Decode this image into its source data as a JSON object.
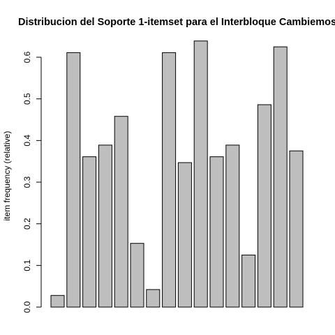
{
  "chart_data": {
    "type": "bar",
    "title": "Distribucion del Soporte 1-itemset para el Interbloque Cambiemos",
    "xlabel": "",
    "ylabel": "item frequency (relative)",
    "ylim": [
      0,
      0.65
    ],
    "yticks": [
      0.0,
      0.1,
      0.2,
      0.3,
      0.4,
      0.5,
      0.6
    ],
    "ytick_labels": [
      "0.0",
      "0.1",
      "0.2",
      "0.3",
      "0.4",
      "0.5",
      "0.6"
    ],
    "grid": false,
    "legend": "none",
    "bar_color": "#bebebe",
    "values": [
      0.028,
      0.611,
      0.361,
      0.389,
      0.458,
      0.153,
      0.042,
      0.611,
      0.347,
      0.639,
      0.361,
      0.389,
      0.125,
      0.486,
      0.625,
      0.375
    ]
  }
}
